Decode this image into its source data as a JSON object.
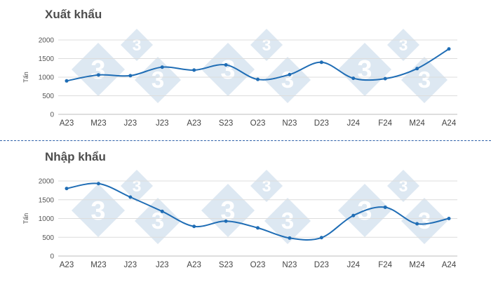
{
  "colors": {
    "line": "#1f6db5",
    "grid": "#dcdcdc",
    "watermark": "#dde8f2",
    "divider": "#2c5fa8"
  },
  "chart_data": [
    {
      "type": "line",
      "title": "Xuất khẩu",
      "ylabel": "Tấn",
      "xlabel": "",
      "categories": [
        "A23",
        "M23",
        "J23",
        "J23",
        "A23",
        "S23",
        "O23",
        "N23",
        "D23",
        "J24",
        "F24",
        "M24",
        "A24"
      ],
      "series": [
        {
          "values": [
            900,
            1060,
            1040,
            1270,
            1190,
            1330,
            940,
            1070,
            1400,
            970,
            960,
            1230,
            1760
          ]
        }
      ],
      "yticks": [
        0,
        500,
        1000,
        1500,
        2000
      ],
      "ylim": [
        0,
        2000
      ],
      "grid": true,
      "smooth": true
    },
    {
      "type": "line",
      "title": "Nhập khẩu",
      "ylabel": "Tấn",
      "xlabel": "",
      "categories": [
        "A23",
        "M23",
        "J23",
        "J23",
        "A23",
        "S23",
        "O23",
        "N23",
        "D23",
        "J24",
        "F24",
        "M24",
        "A24"
      ],
      "series": [
        {
          "values": [
            1800,
            1930,
            1570,
            1190,
            790,
            930,
            750,
            480,
            490,
            1080,
            1300,
            860,
            1000
          ]
        }
      ],
      "yticks": [
        0,
        500,
        1000,
        1500,
        2000
      ],
      "ylim": [
        0,
        2000
      ],
      "grid": true,
      "smooth": true
    }
  ]
}
